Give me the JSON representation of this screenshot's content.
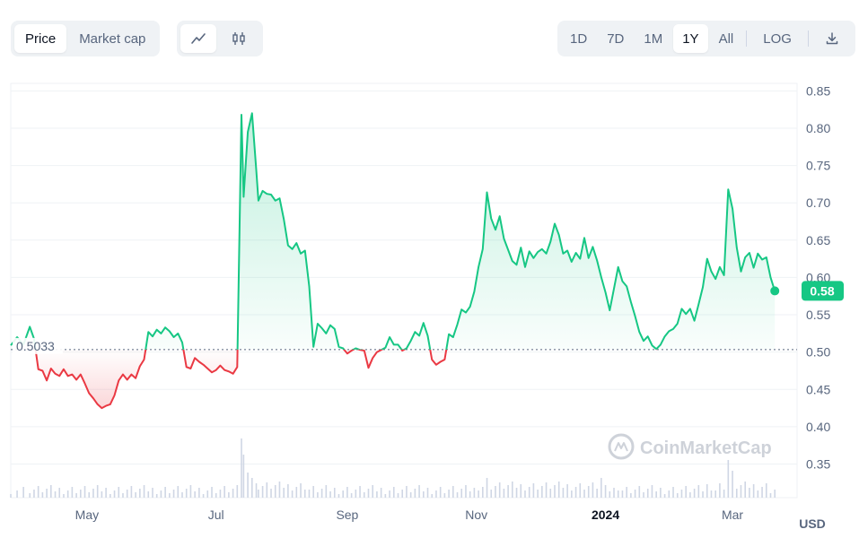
{
  "toolbar": {
    "type_tabs": [
      {
        "label": "Price",
        "active": true
      },
      {
        "label": "Market cap",
        "active": false
      }
    ],
    "view_buttons": [
      {
        "icon": "line-chart-icon",
        "active": true
      },
      {
        "icon": "candlestick-icon",
        "active": false
      }
    ],
    "ranges": [
      {
        "label": "1D",
        "active": false
      },
      {
        "label": "7D",
        "active": false
      },
      {
        "label": "1M",
        "active": false
      },
      {
        "label": "1Y",
        "active": true
      },
      {
        "label": "All",
        "active": false
      }
    ],
    "log_label": "LOG",
    "download_icon": "download-icon"
  },
  "chart_data": {
    "type": "area",
    "currency_label": "USD",
    "watermark": "CoinMarketCap",
    "baseline_value": 0.5033,
    "baseline_label": "0.5033",
    "current_value_label": "0.58",
    "ylim": [
      0.305,
      0.86
    ],
    "y_ticks": [
      0.35,
      0.4,
      0.45,
      0.5,
      0.55,
      0.6,
      0.65,
      0.7,
      0.75,
      0.8,
      0.85
    ],
    "y_tick_labels": [
      "0.35",
      "0.40",
      "0.45",
      "0.50",
      "0.55",
      "0.60",
      "0.65",
      "0.70",
      "0.75",
      "0.80",
      "0.85"
    ],
    "x_range": [
      "2023-03-26",
      "2024-03-26"
    ],
    "x_ticks": [
      {
        "date": "2023-05-01",
        "label": "May",
        "bold": false
      },
      {
        "date": "2023-07-01",
        "label": "Jul",
        "bold": false
      },
      {
        "date": "2023-09-01",
        "label": "Sep",
        "bold": false
      },
      {
        "date": "2023-11-01",
        "label": "Nov",
        "bold": false
      },
      {
        "date": "2024-01-01",
        "label": "2024",
        "bold": true
      },
      {
        "date": "2024-03-01",
        "label": "Mar",
        "bold": false
      }
    ],
    "colors": {
      "up": "#16c784",
      "down": "#ea3943",
      "grid": "#eff2f5",
      "axis_text": "#58667e",
      "volume": "#cfd6e4"
    },
    "series": [
      {
        "values": [
          [
            "2023-03-26",
            0.509
          ],
          [
            "2023-03-29",
            0.52
          ],
          [
            "2023-04-01",
            0.51
          ],
          [
            "2023-04-04",
            0.534
          ],
          [
            "2023-04-06",
            0.518
          ],
          [
            "2023-04-08",
            0.477
          ],
          [
            "2023-04-10",
            0.475
          ],
          [
            "2023-04-12",
            0.462
          ],
          [
            "2023-04-14",
            0.478
          ],
          [
            "2023-04-16",
            0.471
          ],
          [
            "2023-04-18",
            0.468
          ],
          [
            "2023-04-20",
            0.477
          ],
          [
            "2023-04-22",
            0.468
          ],
          [
            "2023-04-24",
            0.47
          ],
          [
            "2023-04-26",
            0.463
          ],
          [
            "2023-04-28",
            0.47
          ],
          [
            "2023-04-30",
            0.458
          ],
          [
            "2023-05-02",
            0.445
          ],
          [
            "2023-05-04",
            0.438
          ],
          [
            "2023-05-06",
            0.43
          ],
          [
            "2023-05-08",
            0.425
          ],
          [
            "2023-05-10",
            0.428
          ],
          [
            "2023-05-12",
            0.43
          ],
          [
            "2023-05-14",
            0.442
          ],
          [
            "2023-05-16",
            0.462
          ],
          [
            "2023-05-18",
            0.47
          ],
          [
            "2023-05-20",
            0.463
          ],
          [
            "2023-05-22",
            0.47
          ],
          [
            "2023-05-24",
            0.465
          ],
          [
            "2023-05-26",
            0.481
          ],
          [
            "2023-05-28",
            0.49
          ],
          [
            "2023-05-30",
            0.527
          ],
          [
            "2023-06-01",
            0.521
          ],
          [
            "2023-06-03",
            0.53
          ],
          [
            "2023-06-05",
            0.525
          ],
          [
            "2023-06-07",
            0.533
          ],
          [
            "2023-06-09",
            0.528
          ],
          [
            "2023-06-11",
            0.52
          ],
          [
            "2023-06-13",
            0.525
          ],
          [
            "2023-06-15",
            0.513
          ],
          [
            "2023-06-17",
            0.48
          ],
          [
            "2023-06-19",
            0.478
          ],
          [
            "2023-06-21",
            0.492
          ],
          [
            "2023-06-23",
            0.487
          ],
          [
            "2023-06-25",
            0.483
          ],
          [
            "2023-06-27",
            0.478
          ],
          [
            "2023-06-29",
            0.473
          ],
          [
            "2023-07-01",
            0.476
          ],
          [
            "2023-07-03",
            0.482
          ],
          [
            "2023-07-05",
            0.476
          ],
          [
            "2023-07-07",
            0.474
          ],
          [
            "2023-07-09",
            0.471
          ],
          [
            "2023-07-11",
            0.48
          ],
          [
            "2023-07-13",
            0.818
          ],
          [
            "2023-07-14",
            0.708
          ],
          [
            "2023-07-16",
            0.795
          ],
          [
            "2023-07-18",
            0.82
          ],
          [
            "2023-07-20",
            0.744
          ],
          [
            "2023-07-21",
            0.703
          ],
          [
            "2023-07-23",
            0.716
          ],
          [
            "2023-07-25",
            0.712
          ],
          [
            "2023-07-27",
            0.711
          ],
          [
            "2023-07-29",
            0.703
          ],
          [
            "2023-07-31",
            0.706
          ],
          [
            "2023-08-02",
            0.678
          ],
          [
            "2023-08-04",
            0.643
          ],
          [
            "2023-08-06",
            0.638
          ],
          [
            "2023-08-08",
            0.646
          ],
          [
            "2023-08-10",
            0.632
          ],
          [
            "2023-08-12",
            0.636
          ],
          [
            "2023-08-14",
            0.588
          ],
          [
            "2023-08-16",
            0.507
          ],
          [
            "2023-08-18",
            0.538
          ],
          [
            "2023-08-20",
            0.532
          ],
          [
            "2023-08-22",
            0.525
          ],
          [
            "2023-08-24",
            0.536
          ],
          [
            "2023-08-26",
            0.531
          ],
          [
            "2023-08-28",
            0.507
          ],
          [
            "2023-08-30",
            0.505
          ],
          [
            "2023-09-01",
            0.498
          ],
          [
            "2023-09-03",
            0.502
          ],
          [
            "2023-09-05",
            0.505
          ],
          [
            "2023-09-07",
            0.503
          ],
          [
            "2023-09-09",
            0.502
          ],
          [
            "2023-09-11",
            0.479
          ],
          [
            "2023-09-13",
            0.492
          ],
          [
            "2023-09-15",
            0.5
          ],
          [
            "2023-09-17",
            0.503
          ],
          [
            "2023-09-19",
            0.506
          ],
          [
            "2023-09-21",
            0.52
          ],
          [
            "2023-09-23",
            0.51
          ],
          [
            "2023-09-25",
            0.51
          ],
          [
            "2023-09-27",
            0.502
          ],
          [
            "2023-09-29",
            0.505
          ],
          [
            "2023-10-01",
            0.515
          ],
          [
            "2023-10-03",
            0.527
          ],
          [
            "2023-10-05",
            0.522
          ],
          [
            "2023-10-07",
            0.539
          ],
          [
            "2023-10-09",
            0.522
          ],
          [
            "2023-10-11",
            0.49
          ],
          [
            "2023-10-13",
            0.483
          ],
          [
            "2023-10-15",
            0.487
          ],
          [
            "2023-10-17",
            0.49
          ],
          [
            "2023-10-19",
            0.524
          ],
          [
            "2023-10-21",
            0.52
          ],
          [
            "2023-10-23",
            0.537
          ],
          [
            "2023-10-25",
            0.557
          ],
          [
            "2023-10-27",
            0.553
          ],
          [
            "2023-10-29",
            0.561
          ],
          [
            "2023-10-31",
            0.581
          ],
          [
            "2023-11-02",
            0.614
          ],
          [
            "2023-11-04",
            0.638
          ],
          [
            "2023-11-06",
            0.714
          ],
          [
            "2023-11-08",
            0.679
          ],
          [
            "2023-11-10",
            0.664
          ],
          [
            "2023-11-12",
            0.682
          ],
          [
            "2023-11-14",
            0.652
          ],
          [
            "2023-11-16",
            0.637
          ],
          [
            "2023-11-18",
            0.622
          ],
          [
            "2023-11-20",
            0.617
          ],
          [
            "2023-11-22",
            0.64
          ],
          [
            "2023-11-24",
            0.614
          ],
          [
            "2023-11-26",
            0.635
          ],
          [
            "2023-11-28",
            0.626
          ],
          [
            "2023-11-30",
            0.634
          ],
          [
            "2023-12-02",
            0.638
          ],
          [
            "2023-12-04",
            0.632
          ],
          [
            "2023-12-06",
            0.648
          ],
          [
            "2023-12-08",
            0.672
          ],
          [
            "2023-12-10",
            0.657
          ],
          [
            "2023-12-12",
            0.632
          ],
          [
            "2023-12-14",
            0.636
          ],
          [
            "2023-12-16",
            0.621
          ],
          [
            "2023-12-18",
            0.633
          ],
          [
            "2023-12-20",
            0.625
          ],
          [
            "2023-12-22",
            0.653
          ],
          [
            "2023-12-24",
            0.626
          ],
          [
            "2023-12-26",
            0.641
          ],
          [
            "2023-12-28",
            0.623
          ],
          [
            "2023-12-30",
            0.6
          ],
          [
            "2024-01-01",
            0.58
          ],
          [
            "2024-01-03",
            0.556
          ],
          [
            "2024-01-05",
            0.585
          ],
          [
            "2024-01-07",
            0.614
          ],
          [
            "2024-01-09",
            0.595
          ],
          [
            "2024-01-11",
            0.588
          ],
          [
            "2024-01-13",
            0.567
          ],
          [
            "2024-01-15",
            0.548
          ],
          [
            "2024-01-17",
            0.527
          ],
          [
            "2024-01-19",
            0.515
          ],
          [
            "2024-01-21",
            0.521
          ],
          [
            "2024-01-23",
            0.509
          ],
          [
            "2024-01-25",
            0.504
          ],
          [
            "2024-01-27",
            0.51
          ],
          [
            "2024-01-29",
            0.521
          ],
          [
            "2024-01-31",
            0.528
          ],
          [
            "2024-02-02",
            0.531
          ],
          [
            "2024-02-04",
            0.538
          ],
          [
            "2024-02-06",
            0.558
          ],
          [
            "2024-02-08",
            0.551
          ],
          [
            "2024-02-10",
            0.558
          ],
          [
            "2024-02-12",
            0.542
          ],
          [
            "2024-02-14",
            0.564
          ],
          [
            "2024-02-16",
            0.587
          ],
          [
            "2024-02-18",
            0.625
          ],
          [
            "2024-02-20",
            0.608
          ],
          [
            "2024-02-22",
            0.598
          ],
          [
            "2024-02-24",
            0.614
          ],
          [
            "2024-02-26",
            0.603
          ],
          [
            "2024-02-28",
            0.718
          ],
          [
            "2024-03-01",
            0.692
          ],
          [
            "2024-03-03",
            0.64
          ],
          [
            "2024-03-05",
            0.608
          ],
          [
            "2024-03-07",
            0.627
          ],
          [
            "2024-03-09",
            0.633
          ],
          [
            "2024-03-11",
            0.613
          ],
          [
            "2024-03-13",
            0.632
          ],
          [
            "2024-03-15",
            0.624
          ],
          [
            "2024-03-17",
            0.627
          ],
          [
            "2024-03-19",
            0.6
          ],
          [
            "2024-03-21",
            0.582
          ]
        ]
      }
    ]
  }
}
